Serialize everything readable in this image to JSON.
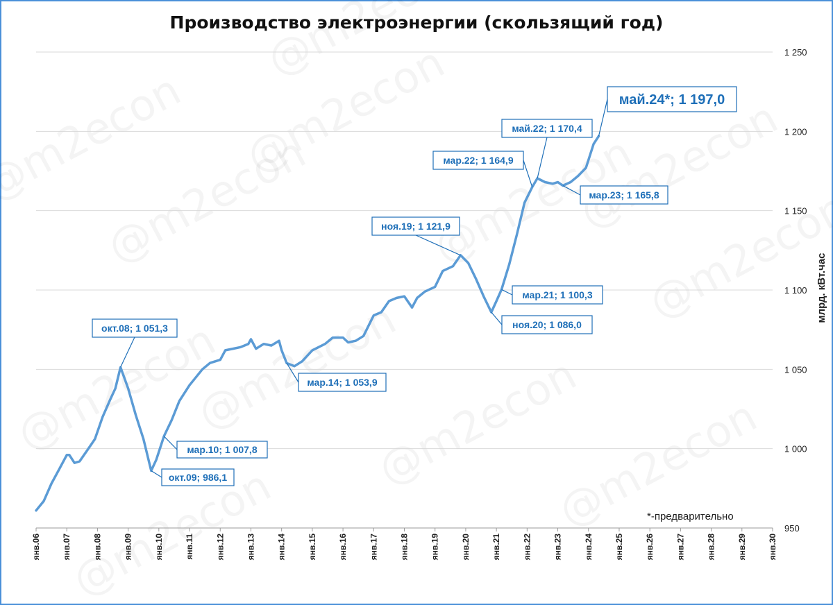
{
  "watermark": "@m2econ",
  "chart_data": {
    "type": "line",
    "title": "Производство электроэнергии (скользящий год)",
    "ylabel": "млрд. кВт.час",
    "footnote": "*-предварительно",
    "ylim": [
      950,
      1250
    ],
    "yticks": [
      950,
      1000,
      1050,
      1100,
      1150,
      1200,
      1250
    ],
    "ytick_labels": [
      "950",
      "1 000",
      "1 050",
      "1 100",
      "1 150",
      "1 200",
      "1 250"
    ],
    "xlim": [
      "2006-01",
      "2030-01"
    ],
    "xtick_labels": [
      "янв.06",
      "янв.07",
      "янв.08",
      "янв.09",
      "янв.10",
      "янв.11",
      "янв.12",
      "янв.13",
      "янв.14",
      "янв.15",
      "янв.16",
      "янв.17",
      "янв.18",
      "янв.19",
      "янв.20",
      "янв.21",
      "янв.22",
      "янв.23",
      "янв.24",
      "янв.25",
      "янв.26",
      "янв.27",
      "янв.28",
      "янв.29",
      "янв.30"
    ],
    "line_color": "#5b9bd5",
    "grid": "horizontal",
    "series": [
      {
        "points": [
          [
            "2006-01",
            961
          ],
          [
            "2006-04",
            967
          ],
          [
            "2006-07",
            978
          ],
          [
            "2006-10",
            987
          ],
          [
            "2007-01",
            996
          ],
          [
            "2007-02",
            996
          ],
          [
            "2007-04",
            991
          ],
          [
            "2007-06",
            992
          ],
          [
            "2007-09",
            999
          ],
          [
            "2007-12",
            1006
          ],
          [
            "2008-03",
            1020
          ],
          [
            "2008-06",
            1031
          ],
          [
            "2008-08",
            1038
          ],
          [
            "2008-10",
            1051.3
          ],
          [
            "2009-01",
            1038
          ],
          [
            "2009-04",
            1021
          ],
          [
            "2009-07",
            1006
          ],
          [
            "2009-10",
            986.1
          ],
          [
            "2009-12",
            993
          ],
          [
            "2010-03",
            1007.8
          ],
          [
            "2010-06",
            1018
          ],
          [
            "2010-09",
            1030
          ],
          [
            "2011-01",
            1040
          ],
          [
            "2011-06",
            1050
          ],
          [
            "2011-09",
            1054
          ],
          [
            "2012-01",
            1056
          ],
          [
            "2012-03",
            1062
          ],
          [
            "2012-06",
            1063
          ],
          [
            "2012-09",
            1064
          ],
          [
            "2012-12",
            1066
          ],
          [
            "2013-01",
            1069
          ],
          [
            "2013-03",
            1063
          ],
          [
            "2013-06",
            1066
          ],
          [
            "2013-09",
            1065
          ],
          [
            "2013-12",
            1068
          ],
          [
            "2014-01",
            1062
          ],
          [
            "2014-03",
            1053.9
          ],
          [
            "2014-06",
            1052
          ],
          [
            "2014-09",
            1055
          ],
          [
            "2015-01",
            1062
          ],
          [
            "2015-06",
            1066
          ],
          [
            "2015-09",
            1070
          ],
          [
            "2016-01",
            1070
          ],
          [
            "2016-03",
            1067
          ],
          [
            "2016-06",
            1068
          ],
          [
            "2016-09",
            1071
          ],
          [
            "2017-01",
            1084
          ],
          [
            "2017-04",
            1086
          ],
          [
            "2017-07",
            1093
          ],
          [
            "2017-10",
            1095
          ],
          [
            "2018-01",
            1096
          ],
          [
            "2018-04",
            1089
          ],
          [
            "2018-06",
            1095
          ],
          [
            "2018-09",
            1099
          ],
          [
            "2019-01",
            1102
          ],
          [
            "2019-04",
            1112
          ],
          [
            "2019-08",
            1115
          ],
          [
            "2019-11",
            1121.9
          ],
          [
            "2020-02",
            1117
          ],
          [
            "2020-05",
            1107
          ],
          [
            "2020-08",
            1096
          ],
          [
            "2020-11",
            1086
          ],
          [
            "2021-01",
            1093
          ],
          [
            "2021-03",
            1100.3
          ],
          [
            "2021-06",
            1116
          ],
          [
            "2021-09",
            1135
          ],
          [
            "2021-12",
            1155
          ],
          [
            "2022-03",
            1164.9
          ],
          [
            "2022-05",
            1170.4
          ],
          [
            "2022-08",
            1168
          ],
          [
            "2022-11",
            1167
          ],
          [
            "2023-01",
            1168
          ],
          [
            "2023-03",
            1165.8
          ],
          [
            "2023-06",
            1168
          ],
          [
            "2023-09",
            1172
          ],
          [
            "2023-12",
            1177
          ],
          [
            "2024-03",
            1192
          ],
          [
            "2024-05",
            1197
          ]
        ]
      }
    ],
    "annotations": [
      {
        "label": "окт.08; 1 051,3",
        "x": "2008-10",
        "y": 1051.3
      },
      {
        "label": "окт.09; 986,1",
        "x": "2009-10",
        "y": 986.1
      },
      {
        "label": "мар.10; 1 007,8",
        "x": "2010-03",
        "y": 1007.8
      },
      {
        "label": "мар.14; 1 053,9",
        "x": "2014-03",
        "y": 1053.9
      },
      {
        "label": "ноя.19; 1 121,9",
        "x": "2019-11",
        "y": 1121.9
      },
      {
        "label": "ноя.20; 1 086,0",
        "x": "2020-11",
        "y": 1086.0
      },
      {
        "label": "мар.21; 1 100,3",
        "x": "2021-03",
        "y": 1100.3
      },
      {
        "label": "мар.22; 1 164,9",
        "x": "2022-03",
        "y": 1164.9
      },
      {
        "label": "май.22; 1 170,4",
        "x": "2022-05",
        "y": 1170.4
      },
      {
        "label": "мар.23; 1 165,8",
        "x": "2023-03",
        "y": 1165.8
      },
      {
        "label": "май.24*; 1 197,0",
        "x": "2024-05",
        "y": 1197.0
      }
    ]
  }
}
